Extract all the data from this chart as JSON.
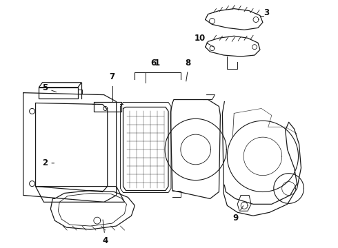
{
  "background_color": "#ffffff",
  "line_color": "#1a1a1a",
  "line_width": 0.9,
  "label_fontsize": 8.5,
  "fig_w": 4.9,
  "fig_h": 3.6,
  "dpi": 100,
  "xlim": [
    0,
    490
  ],
  "ylim": [
    0,
    360
  ]
}
